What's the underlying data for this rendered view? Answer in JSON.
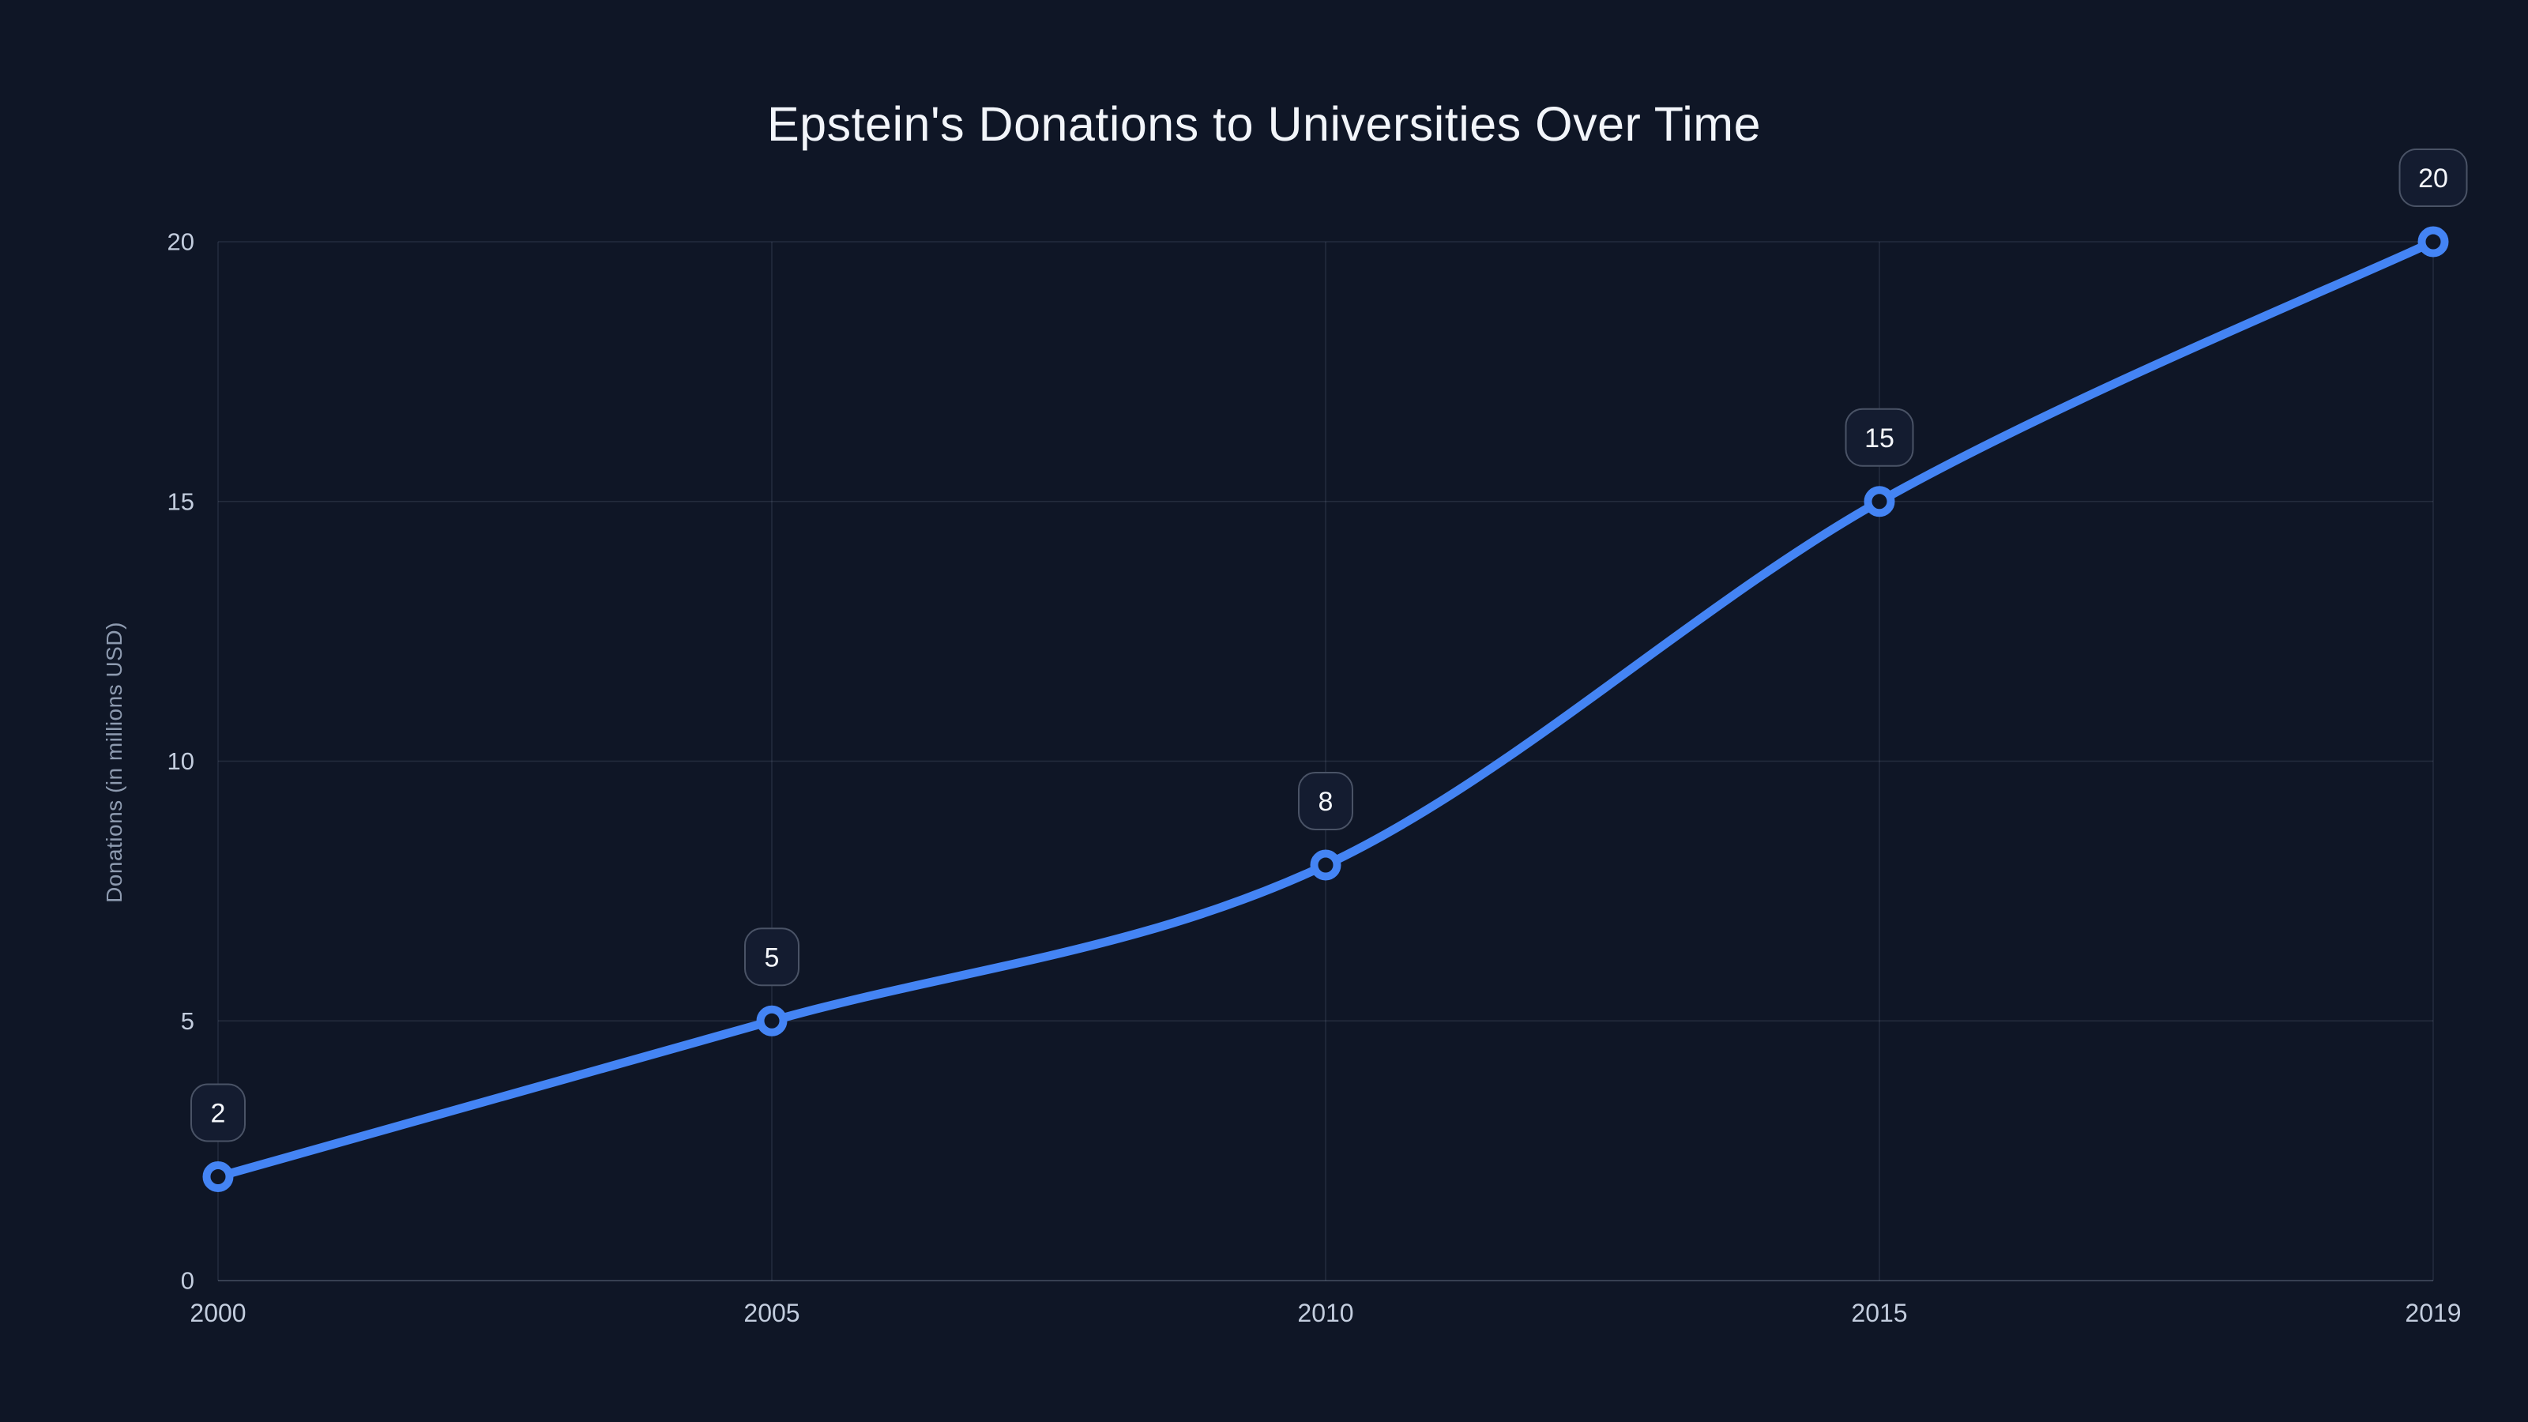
{
  "title": "Epstein's Donations to Universities Over Time",
  "colors": {
    "background": "#0f1626",
    "line": "#4484f4",
    "grid": "rgba(148,163,184,0.16)",
    "axis_line": "rgba(148,163,184,0.30)",
    "tick_label": "#c3cdde",
    "axis_title_text": "#8e9bb0",
    "badge_fill": "#141c30",
    "badge_border": "#4a5366",
    "badge_text": "#f5f7fb",
    "title_text": "#f2f5fa",
    "marker_fill": "#0f1626"
  },
  "chart_data": {
    "type": "line",
    "title": "Epstein's Donations to Universities Over Time",
    "categories": [
      "2000",
      "2005",
      "2010",
      "2015",
      "2019"
    ],
    "series": [
      {
        "name": "Donations",
        "values": [
          2,
          5,
          8,
          15,
          20
        ]
      }
    ],
    "point_labels": [
      "2",
      "5",
      "8",
      "15",
      "20"
    ],
    "xlabel": "",
    "ylabel": "Donations (in millions USD)",
    "ylim": [
      0,
      20
    ],
    "yticks": [
      0,
      5,
      10,
      15,
      20
    ],
    "grid": true,
    "legend": "none",
    "curve": "smooth",
    "markers": "open-circle"
  }
}
